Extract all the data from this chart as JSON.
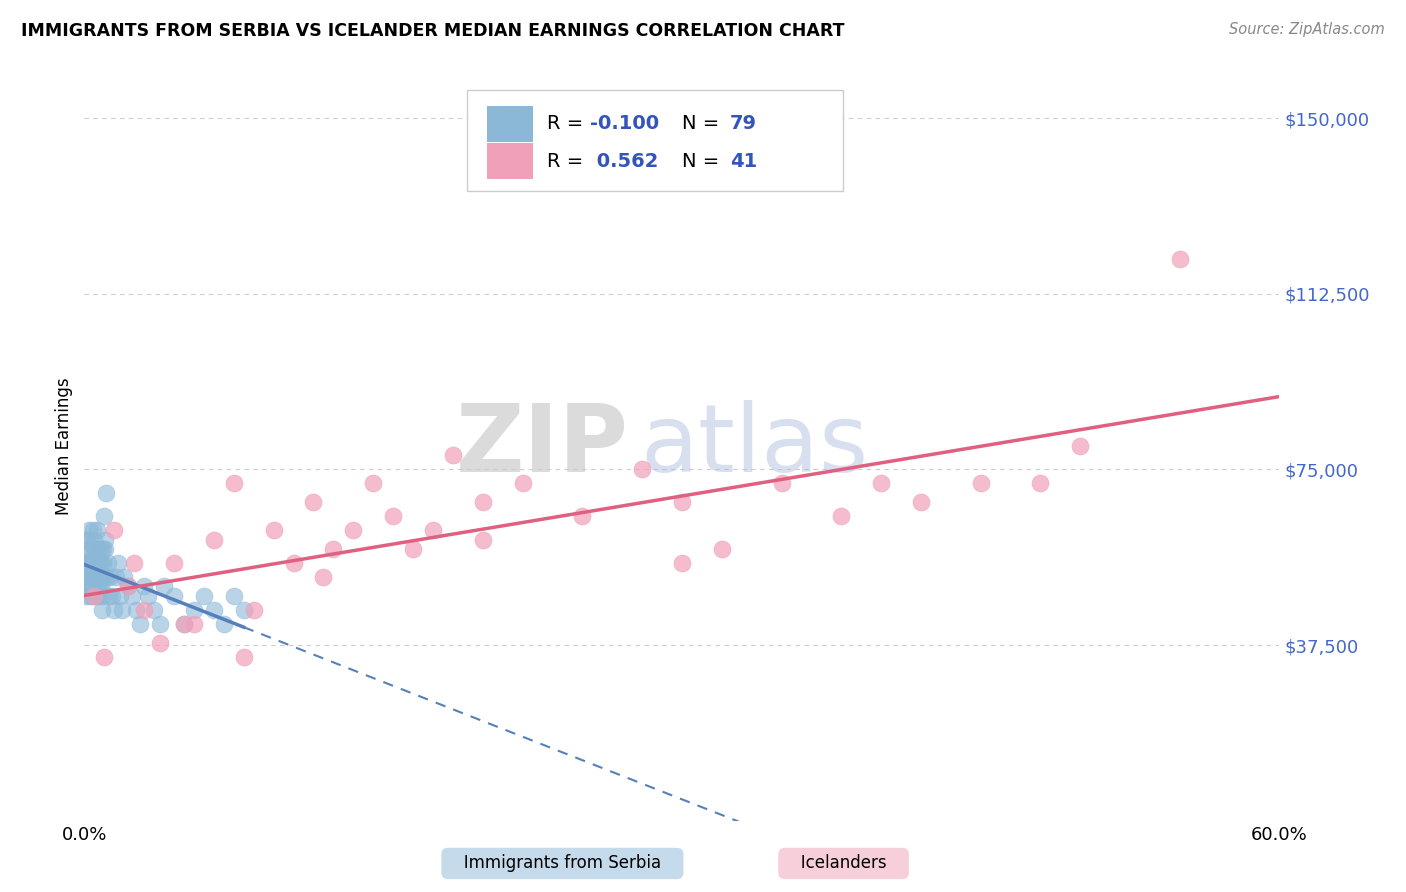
{
  "title": "IMMIGRANTS FROM SERBIA VS ICELANDER MEDIAN EARNINGS CORRELATION CHART",
  "source_text": "Source: ZipAtlas.com",
  "ylabel": "Median Earnings",
  "yticks": [
    0,
    37500,
    75000,
    112500,
    150000
  ],
  "ytick_labels": [
    "",
    "$37,500",
    "$75,000",
    "$112,500",
    "$150,000"
  ],
  "xmin": 0.0,
  "xmax": 60.0,
  "ymin": 5000,
  "ymax": 160000,
  "serbia_color": "#8cb8d8",
  "iceland_color": "#f0a0b8",
  "serbia_line_color": "#5580bb",
  "iceland_line_color": "#e06080",
  "legend_R_serbia": "-0.100",
  "legend_N_serbia": "79",
  "legend_R_iceland": "0.562",
  "legend_N_iceland": "41",
  "serbia_x": [
    0.05,
    0.08,
    0.1,
    0.12,
    0.15,
    0.18,
    0.2,
    0.22,
    0.25,
    0.28,
    0.3,
    0.32,
    0.35,
    0.38,
    0.4,
    0.42,
    0.45,
    0.48,
    0.5,
    0.52,
    0.55,
    0.58,
    0.6,
    0.62,
    0.65,
    0.68,
    0.7,
    0.72,
    0.75,
    0.78,
    0.8,
    0.82,
    0.85,
    0.88,
    0.9,
    0.92,
    0.95,
    0.98,
    1.0,
    1.05,
    1.1,
    1.2,
    1.3,
    1.4,
    1.5,
    1.6,
    1.7,
    1.8,
    1.9,
    2.0,
    2.2,
    2.4,
    2.6,
    2.8,
    3.0,
    3.2,
    3.5,
    3.8,
    4.0,
    4.5,
    5.0,
    5.5,
    6.0,
    6.5,
    7.0,
    7.5,
    8.0,
    0.15,
    0.25,
    0.35,
    0.45,
    0.55,
    0.65,
    0.75,
    0.85,
    0.95,
    1.05,
    1.15,
    1.25
  ],
  "serbia_y": [
    52000,
    55000,
    48000,
    60000,
    52000,
    58000,
    55000,
    50000,
    62000,
    48000,
    55000,
    52000,
    58000,
    50000,
    55000,
    52000,
    48000,
    60000,
    58000,
    52000,
    55000,
    48000,
    52000,
    62000,
    55000,
    50000,
    58000,
    52000,
    48000,
    55000,
    52000,
    58000,
    50000,
    45000,
    52000,
    55000,
    48000,
    52000,
    65000,
    58000,
    70000,
    55000,
    52000,
    48000,
    45000,
    52000,
    55000,
    48000,
    45000,
    52000,
    50000,
    48000,
    45000,
    42000,
    50000,
    48000,
    45000,
    42000,
    50000,
    48000,
    42000,
    45000,
    48000,
    45000,
    42000,
    48000,
    45000,
    60000,
    55000,
    50000,
    62000,
    58000,
    52000,
    50000,
    55000,
    58000,
    60000,
    52000,
    48000
  ],
  "iceland_x": [
    0.5,
    1.0,
    1.5,
    2.2,
    3.0,
    3.8,
    4.5,
    5.5,
    6.5,
    7.5,
    8.5,
    9.5,
    10.5,
    11.5,
    12.5,
    13.5,
    14.5,
    15.5,
    16.5,
    17.5,
    18.5,
    20.0,
    22.0,
    25.0,
    28.0,
    30.0,
    32.0,
    35.0,
    38.0,
    40.0,
    42.0,
    45.0,
    50.0,
    55.0,
    2.5,
    5.0,
    8.0,
    12.0,
    20.0,
    30.0,
    48.0
  ],
  "iceland_y": [
    48000,
    35000,
    62000,
    50000,
    45000,
    38000,
    55000,
    42000,
    60000,
    72000,
    45000,
    62000,
    55000,
    68000,
    58000,
    62000,
    72000,
    65000,
    58000,
    62000,
    78000,
    68000,
    72000,
    65000,
    75000,
    68000,
    58000,
    72000,
    65000,
    72000,
    68000,
    72000,
    80000,
    120000,
    55000,
    42000,
    35000,
    52000,
    60000,
    55000,
    72000
  ]
}
